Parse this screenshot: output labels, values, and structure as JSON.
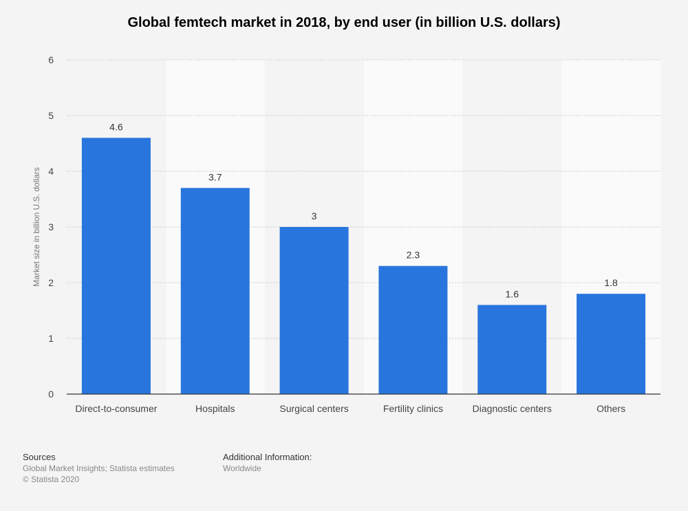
{
  "chart_data": {
    "type": "bar",
    "title": "Global femtech market in 2018, by end user (in billion U.S. dollars)",
    "xlabel": "",
    "ylabel": "Market size in billion U.S. dollars",
    "categories": [
      "Direct-to-consumer",
      "Hospitals",
      "Surgical centers",
      "Fertility clinics",
      "Diagnostic centers",
      "Others"
    ],
    "values": [
      4.6,
      3.7,
      3,
      2.3,
      1.6,
      1.8
    ],
    "value_labels": [
      "4.6",
      "3.7",
      "3",
      "2.3",
      "1.6",
      "1.8"
    ],
    "ylim": [
      0,
      6
    ],
    "yticks": [
      "0",
      "1",
      "2",
      "3",
      "4",
      "5",
      "6"
    ],
    "grid": true,
    "legend": "none",
    "bar_color": "#2876dd"
  },
  "footer": {
    "sources_heading": "Sources",
    "sources_line1": "Global Market Insights; Statista estimates",
    "sources_line2": "© Statista 2020",
    "additional_heading": "Additional Information:",
    "additional_line1": "Worldwide"
  }
}
